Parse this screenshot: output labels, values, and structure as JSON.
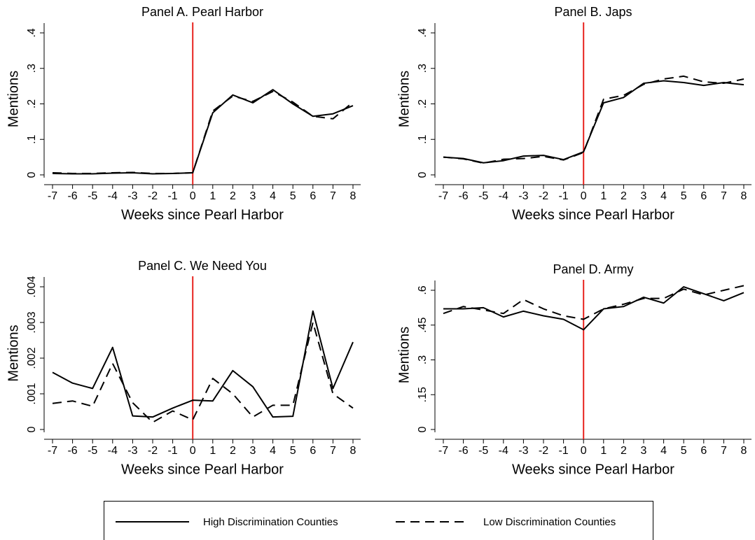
{
  "chart_data": [
    {
      "type": "line",
      "title": "Panel A. Pearl Harbor",
      "xlabel": "Weeks since Pearl Harbor",
      "ylabel": "Mentions",
      "x": [
        -7,
        -6,
        -5,
        -4,
        -3,
        -2,
        -1,
        0,
        1,
        2,
        3,
        4,
        5,
        6,
        7,
        8
      ],
      "xlim": [
        -7,
        8
      ],
      "xticks": [
        -7,
        -6,
        -5,
        -4,
        -3,
        -2,
        -1,
        0,
        1,
        2,
        3,
        4,
        5,
        6,
        7,
        8
      ],
      "ylim": [
        0,
        0.4
      ],
      "yticks": [
        0,
        {
          "value": 0.1,
          "label": ".1"
        },
        {
          "value": 0.2,
          "label": ".2"
        },
        {
          "value": 0.3,
          "label": ".3"
        },
        {
          "value": 0.4,
          "label": ".4"
        }
      ],
      "vline": 0,
      "vline_color": "#e8231e",
      "series": [
        {
          "name": "High Discrimination Counties",
          "color": "#000000",
          "line_style": "solid",
          "values": [
            0.004,
            0.003,
            0.003,
            0.005,
            0.006,
            0.003,
            0.004,
            0.006,
            0.175,
            0.225,
            0.203,
            0.24,
            0.2,
            0.165,
            0.172,
            0.195
          ]
        },
        {
          "name": "Low Discrimination Counties",
          "color": "#000000",
          "line_style": "dashed",
          "values": [
            0.006,
            0.004,
            0.004,
            0.006,
            0.007,
            0.004,
            0.004,
            0.006,
            0.18,
            0.222,
            0.207,
            0.235,
            0.205,
            0.165,
            0.158,
            0.205
          ]
        }
      ]
    },
    {
      "type": "line",
      "title": "Panel B. Japs",
      "xlabel": "Weeks since Pearl Harbor",
      "ylabel": "Mentions",
      "x": [
        -7,
        -6,
        -5,
        -4,
        -3,
        -2,
        -1,
        0,
        1,
        2,
        3,
        4,
        5,
        6,
        7,
        8
      ],
      "xlim": [
        -7,
        8
      ],
      "xticks": [
        -7,
        -6,
        -5,
        -4,
        -3,
        -2,
        -1,
        0,
        1,
        2,
        3,
        4,
        5,
        6,
        7,
        8
      ],
      "ylim": [
        0,
        0.4
      ],
      "yticks": [
        0,
        {
          "value": 0.1,
          "label": ".1"
        },
        {
          "value": 0.2,
          "label": ".2"
        },
        {
          "value": 0.3,
          "label": ".3"
        },
        {
          "value": 0.4,
          "label": ".4"
        }
      ],
      "vline": 0,
      "vline_color": "#e8231e",
      "series": [
        {
          "name": "High Discrimination Counties",
          "color": "#000000",
          "line_style": "solid",
          "values": [
            0.05,
            0.046,
            0.034,
            0.04,
            0.053,
            0.055,
            0.043,
            0.065,
            0.203,
            0.218,
            0.258,
            0.265,
            0.26,
            0.252,
            0.26,
            0.254
          ]
        },
        {
          "name": "Low Discrimination Counties",
          "color": "#000000",
          "line_style": "dashed",
          "values": [
            0.05,
            0.045,
            0.033,
            0.044,
            0.046,
            0.052,
            0.042,
            0.063,
            0.213,
            0.224,
            0.255,
            0.27,
            0.278,
            0.262,
            0.258,
            0.27
          ]
        }
      ]
    },
    {
      "type": "line",
      "title": "Panel C. We Need You",
      "xlabel": "Weeks since Pearl Harbor",
      "ylabel": "Mentions",
      "x": [
        -7,
        -6,
        -5,
        -4,
        -3,
        -2,
        -1,
        0,
        1,
        2,
        3,
        4,
        5,
        6,
        7,
        8
      ],
      "xlim": [
        -7,
        8
      ],
      "xticks": [
        -7,
        -6,
        -5,
        -4,
        -3,
        -2,
        -1,
        0,
        1,
        2,
        3,
        4,
        5,
        6,
        7,
        8
      ],
      "ylim": [
        0,
        0.004
      ],
      "yticks": [
        0,
        {
          "value": 0.001,
          "label": ".001"
        },
        {
          "value": 0.002,
          "label": ".002"
        },
        {
          "value": 0.003,
          "label": ".003"
        },
        {
          "value": 0.004,
          "label": ".004"
        }
      ],
      "vline": 0,
      "vline_color": "#e8231e",
      "series": [
        {
          "name": "High Discrimination Counties",
          "color": "#000000",
          "line_style": "solid",
          "values": [
            0.0016,
            0.0013,
            0.00115,
            0.0023,
            0.00038,
            0.00035,
            0.0006,
            0.00082,
            0.0008,
            0.00165,
            0.0012,
            0.00035,
            0.00037,
            0.00332,
            0.00115,
            0.00245
          ]
        },
        {
          "name": "Low Discrimination Counties",
          "color": "#000000",
          "line_style": "dashed",
          "values": [
            0.00073,
            0.0008,
            0.00065,
            0.00185,
            0.00075,
            0.0002,
            0.00052,
            0.00027,
            0.00143,
            0.001,
            0.00035,
            0.00068,
            0.00068,
            0.003,
            0.001,
            0.0006
          ]
        }
      ]
    },
    {
      "type": "line",
      "title": "Panel D. Army",
      "xlabel": "Weeks since Pearl Harbor",
      "ylabel": "Mentions",
      "x": [
        -7,
        -6,
        -5,
        -4,
        -3,
        -2,
        -1,
        0,
        1,
        2,
        3,
        4,
        5,
        6,
        7,
        8
      ],
      "xlim": [
        -7,
        8
      ],
      "xticks": [
        -7,
        -6,
        -5,
        -4,
        -3,
        -2,
        -1,
        0,
        1,
        2,
        3,
        4,
        5,
        6,
        7,
        8
      ],
      "ylim": [
        0,
        0.6
      ],
      "yticks": [
        0,
        {
          "value": 0.15,
          "label": ".15"
        },
        {
          "value": 0.3,
          "label": ".3"
        },
        {
          "value": 0.45,
          "label": ".45"
        },
        {
          "value": 0.6,
          "label": ".6"
        }
      ],
      "vline": 0,
      "vline_color": "#e8231e",
      "series": [
        {
          "name": "High Discrimination Counties",
          "color": "#000000",
          "line_style": "solid",
          "values": [
            0.52,
            0.52,
            0.525,
            0.485,
            0.51,
            0.49,
            0.475,
            0.43,
            0.52,
            0.53,
            0.57,
            0.545,
            0.615,
            0.585,
            0.555,
            0.59
          ]
        },
        {
          "name": "Low Discrimination Counties",
          "color": "#000000",
          "line_style": "dashed",
          "values": [
            0.5,
            0.53,
            0.515,
            0.5,
            0.56,
            0.52,
            0.49,
            0.475,
            0.52,
            0.54,
            0.565,
            0.565,
            0.605,
            0.58,
            0.6,
            0.62
          ]
        }
      ]
    }
  ]
}
